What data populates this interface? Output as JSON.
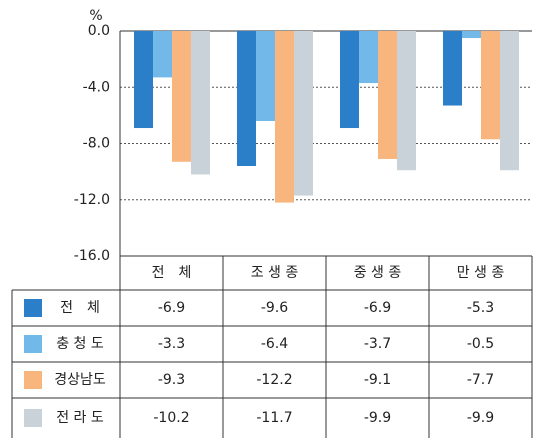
{
  "chart_data": {
    "type": "bar",
    "unit": "%",
    "categories": [
      "전　체",
      "조 생 종",
      "중 생 종",
      "만 생 종"
    ],
    "series": [
      {
        "name": "전　체",
        "color": "#2b7fc9",
        "values": [
          -6.9,
          -9.6,
          -6.9,
          -5.3
        ]
      },
      {
        "name": "충 청 도",
        "color": "#72b9ea",
        "values": [
          -3.3,
          -6.4,
          -3.7,
          -0.5
        ]
      },
      {
        "name": "경상남도",
        "color": "#f8b67e",
        "values": [
          -9.3,
          -12.2,
          -9.1,
          -7.7
        ]
      },
      {
        "name": "전 라 도",
        "color": "#c8d2d8",
        "values": [
          -10.2,
          -11.7,
          -9.9,
          -9.9
        ]
      }
    ],
    "ylim": [
      -16,
      0
    ],
    "yticks": [
      {
        "value": 0,
        "label": "0.0"
      },
      {
        "value": -4,
        "label": "-4.0"
      },
      {
        "value": -8,
        "label": "-8.0"
      },
      {
        "value": -12,
        "label": "-12.0"
      },
      {
        "value": -16,
        "label": "-16.0"
      }
    ],
    "grid": true
  }
}
